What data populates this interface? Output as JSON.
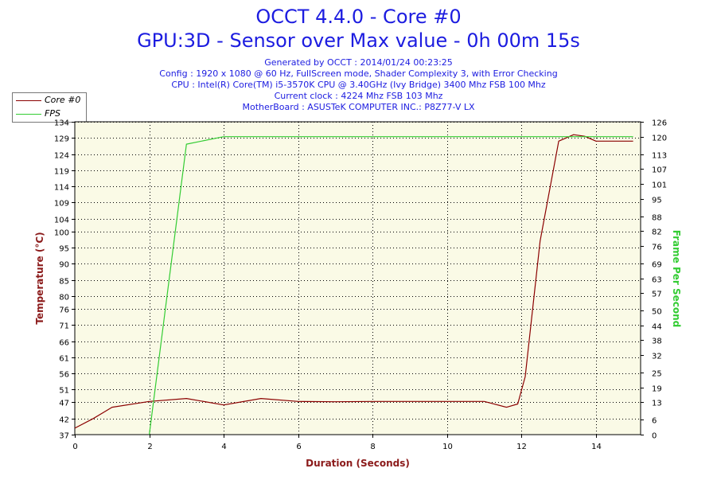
{
  "header": {
    "title_line1": "OCCT 4.4.0 - Core #0",
    "title_line2": "GPU:3D - Sensor over Max value - 0h 00m 15s",
    "info_lines": [
      "Generated by OCCT : 2014/01/24 00:23:25",
      "Config : 1920 x 1080 @ 60 Hz, FullScreen mode, Shader Complexity 3, with Error Checking",
      "CPU : Intel(R) Core(TM) i5-3570K CPU @ 3.40GHz (Ivy Bridge) 3400 Mhz FSB 100 Mhz",
      "Current clock : 4224 Mhz FSB 103 Mhz",
      "MotherBoard : ASUSTeK COMPUTER INC.: P8Z77-V LX"
    ]
  },
  "legend": {
    "items": [
      {
        "label": "Core #0",
        "color": "#8b0000"
      },
      {
        "label": "FPS",
        "color": "#33cc33"
      }
    ],
    "placement": "top-left"
  },
  "colors": {
    "plot_background": "#fafae6",
    "grid": "#000000",
    "core_series": "#8b0000",
    "fps_series": "#33cc33",
    "axis_title_left": "#8b1a1a",
    "axis_title_right": "#33cc33",
    "axis_title_bottom": "#8b1a1a"
  },
  "chart_data": {
    "type": "line",
    "xlabel": "Duration (Seconds)",
    "ylabel": "Temperature (°C)",
    "y2label": "Frame Per Second",
    "xlim": [
      0,
      15.2
    ],
    "ylim": [
      37,
      134
    ],
    "y2lim": [
      0,
      126
    ],
    "grid": true,
    "x_ticks": [
      0,
      2,
      4,
      6,
      8,
      10,
      12,
      14
    ],
    "y_ticks": [
      37,
      42,
      47,
      51,
      56,
      61,
      66,
      71,
      76,
      80,
      85,
      90,
      95,
      100,
      104,
      109,
      114,
      119,
      124,
      129,
      134
    ],
    "y2_ticks": [
      0,
      6,
      13,
      19,
      25,
      32,
      38,
      44,
      50,
      57,
      63,
      69,
      76,
      82,
      88,
      95,
      101,
      107,
      113,
      120,
      126
    ],
    "series": [
      {
        "name": "Core #0",
        "axis": "left",
        "x": [
          0,
          0.5,
          1,
          2,
          3,
          4,
          5,
          6,
          7,
          8,
          9,
          10,
          11,
          11.6,
          11.9,
          12.1,
          12.5,
          13,
          13.4,
          13.7,
          14,
          15
        ],
        "y": [
          39,
          42,
          45.5,
          47.3,
          48.2,
          46.2,
          48.2,
          47.3,
          47.2,
          47.3,
          47.3,
          47.3,
          47.3,
          45.5,
          46.5,
          55,
          97,
          128,
          130,
          129.5,
          128,
          128
        ]
      },
      {
        "name": "FPS",
        "axis": "right",
        "x": [
          2,
          3,
          4,
          5,
          6,
          7,
          8,
          9,
          10,
          11,
          12,
          13,
          14,
          15
        ],
        "y": [
          0,
          117,
          120,
          120,
          120,
          120,
          120,
          120,
          120,
          120,
          120,
          120,
          120,
          120
        ]
      }
    ]
  }
}
